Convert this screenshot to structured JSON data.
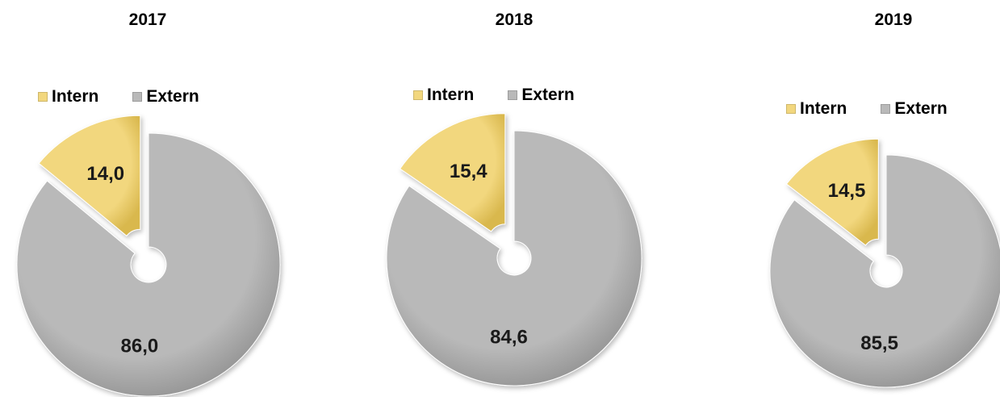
{
  "colors": {
    "intern": "#f2d77e",
    "intern_dark": "#d9b84e",
    "extern": "#b9b9b9",
    "extern_dark": "#8f8f8f"
  },
  "chart_data": [
    {
      "type": "pie",
      "title": "2017",
      "legend": [
        "Intern",
        "Extern"
      ],
      "slices": [
        {
          "label": "Intern",
          "value": 14.0,
          "display": "14,0"
        },
        {
          "label": "Extern",
          "value": 86.0,
          "display": "86,0"
        }
      ]
    },
    {
      "type": "pie",
      "title": "2018",
      "legend": [
        "Intern",
        "Extern"
      ],
      "slices": [
        {
          "label": "Intern",
          "value": 15.4,
          "display": "15,4"
        },
        {
          "label": "Extern",
          "value": 84.6,
          "display": "84,6"
        }
      ]
    },
    {
      "type": "pie",
      "title": "2019",
      "legend": [
        "Intern",
        "Extern"
      ],
      "slices": [
        {
          "label": "Intern",
          "value": 14.5,
          "display": "14,5"
        },
        {
          "label": "Extern",
          "value": 85.5,
          "display": "85,5"
        }
      ]
    }
  ]
}
